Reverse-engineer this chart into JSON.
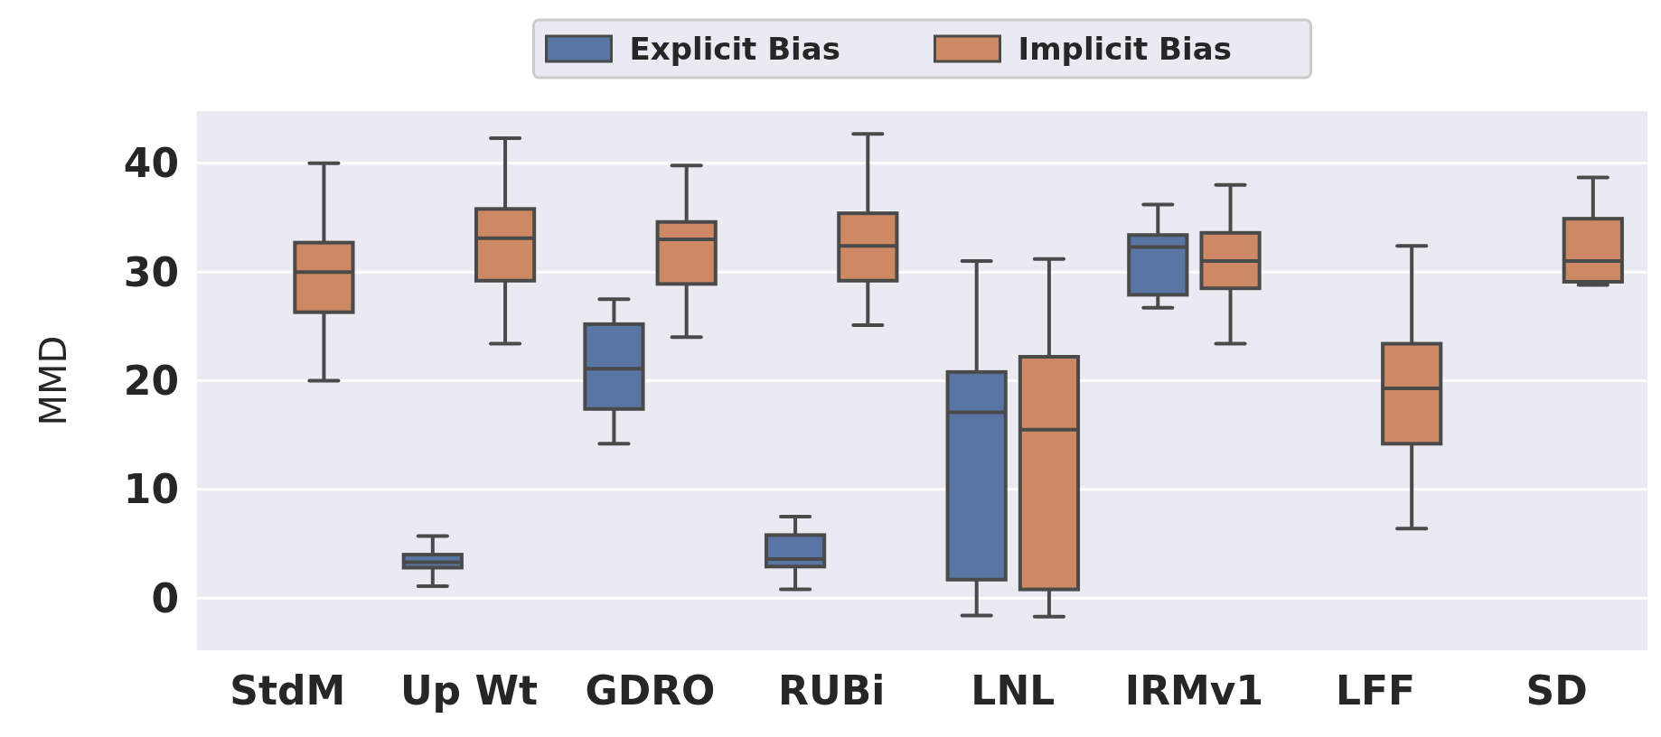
{
  "chart_data": {
    "type": "box",
    "ylabel": "MMD",
    "categories": [
      "StdM",
      "Up Wt",
      "GDRO",
      "RUBi",
      "LNL",
      "IRMv1",
      "LFF",
      "SD"
    ],
    "ylim": [
      -4.8,
      44.8
    ],
    "yticks": [
      0,
      10,
      20,
      30,
      40
    ],
    "grid": "y",
    "legend": "top",
    "series": [
      {
        "name": "Explicit Bias",
        "color": "#5875a4",
        "boxes": [
          null,
          {
            "low": 1.1,
            "q1": 2.8,
            "median": 3.3,
            "q3": 4.0,
            "high": 5.7
          },
          {
            "low": 14.2,
            "q1": 17.4,
            "median": 21.1,
            "q3": 25.2,
            "high": 27.5
          },
          {
            "low": 0.8,
            "q1": 2.9,
            "median": 3.6,
            "q3": 5.8,
            "high": 7.5
          },
          {
            "low": -1.6,
            "q1": 1.7,
            "median": 17.1,
            "q3": 20.8,
            "high": 31.0
          },
          {
            "low": 26.7,
            "q1": 27.9,
            "median": 32.3,
            "q3": 33.4,
            "high": 36.2
          },
          null,
          null
        ]
      },
      {
        "name": "Implicit Bias",
        "color": "#cc8963",
        "boxes": [
          {
            "low": 20.0,
            "q1": 26.3,
            "median": 30.0,
            "q3": 32.7,
            "high": 40.0
          },
          {
            "low": 23.4,
            "q1": 29.2,
            "median": 33.1,
            "q3": 35.8,
            "high": 42.3
          },
          {
            "low": 24.0,
            "q1": 28.9,
            "median": 33.0,
            "q3": 34.6,
            "high": 39.8
          },
          {
            "low": 25.1,
            "q1": 29.2,
            "median": 32.4,
            "q3": 35.4,
            "high": 42.7
          },
          {
            "low": -1.7,
            "q1": 0.8,
            "median": 15.5,
            "q3": 22.2,
            "high": 31.2
          },
          {
            "low": 23.4,
            "q1": 28.5,
            "median": 31.0,
            "q3": 33.6,
            "high": 38.0
          },
          {
            "low": 6.4,
            "q1": 14.2,
            "median": 19.3,
            "q3": 23.4,
            "high": 32.4
          },
          {
            "low": 28.8,
            "q1": 29.1,
            "median": 31.0,
            "q3": 34.9,
            "high": 38.7
          }
        ]
      }
    ]
  }
}
